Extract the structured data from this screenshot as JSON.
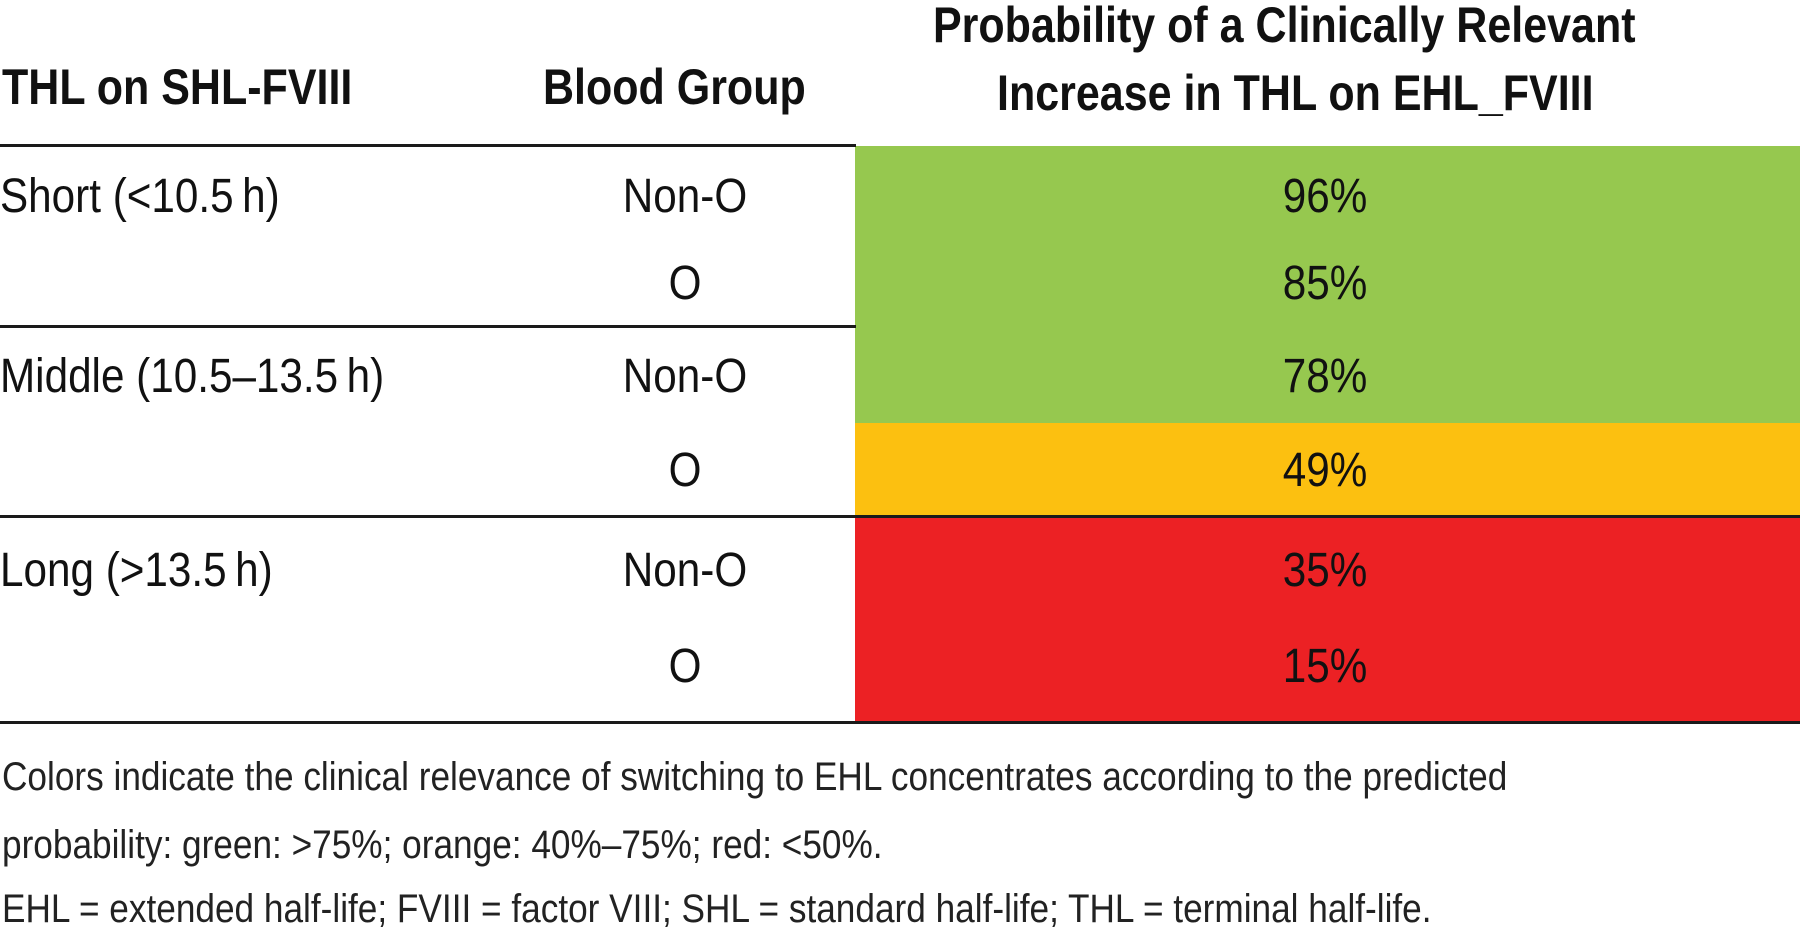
{
  "table": {
    "headers": {
      "col1": "THL on SHL-FVIII",
      "col2": "Blood Group",
      "col3_line1": "Probability of a Clinically Relevant",
      "col3_line2": "Increase in THL on EHL_FVIII"
    },
    "rows": [
      {
        "thl": "Short (<10.5 h)",
        "blood": "Non-O",
        "prob": "96%",
        "color": "#96c84f"
      },
      {
        "thl": "",
        "blood": "O",
        "prob": "85%",
        "color": "#96c84f"
      },
      {
        "thl": "Middle (10.5–13.5 h)",
        "blood": "Non-O",
        "prob": "78%",
        "color": "#96c84f"
      },
      {
        "thl": "",
        "blood": "O",
        "prob": "49%",
        "color": "#fcc010"
      },
      {
        "thl": "Long (>13.5 h)",
        "blood": "Non-O",
        "prob": "35%",
        "color": "#ec2124"
      },
      {
        "thl": "",
        "blood": "O",
        "prob": "15%",
        "color": "#ec2124"
      }
    ]
  },
  "footnotes": {
    "line1": "Colors indicate the clinical relevance of switching to EHL concentrates according to the predicted",
    "line2": "probability: green: >75%; orange: 40%–75%; red: <50%.",
    "line3": "EHL = extended half-life; FVIII = factor VIII; SHL = standard half-life; THL = terminal half-life."
  }
}
